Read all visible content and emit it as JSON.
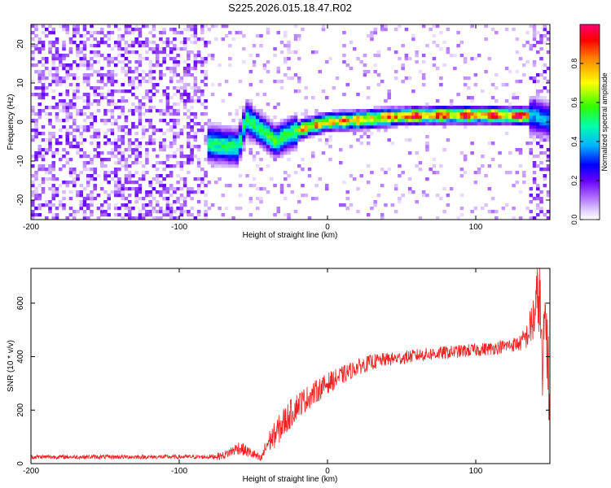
{
  "title": "S225.2026.015.18.47.R02",
  "chart_data": [
    {
      "type": "heatmap",
      "name": "spectrogram",
      "xlabel": "Height of straight line (km)",
      "ylabel": "Frequency (Hz)",
      "xlim": [
        -200,
        150
      ],
      "ylim": [
        -25,
        25
      ],
      "xticks": [
        -200,
        -100,
        0,
        100
      ],
      "yticks": [
        -20,
        -10,
        0,
        10,
        20
      ],
      "colorbar": {
        "label": "Normalized spectral amplitude",
        "range": [
          0,
          1
        ],
        "ticks": [
          0.0,
          0.2,
          0.4,
          0.6,
          0.8
        ],
        "tick_labels": [
          "0.0",
          "0.2",
          "0.4",
          "0.6",
          "0.8"
        ],
        "colors": [
          "#ffffff",
          "#cc99ff",
          "#7700ff",
          "#0000ff",
          "#00c8ff",
          "#00ff99",
          "#33ff00",
          "#ffff00",
          "#ff8800",
          "#ff0000",
          "#ff0066"
        ]
      },
      "features": {
        "noise_region_x": [
          -200,
          -80
        ],
        "ridge": [
          {
            "x": -82,
            "y": -5.5
          },
          {
            "x": -70,
            "y": -6
          },
          {
            "x": -60,
            "y": -6.5
          },
          {
            "x": -55,
            "y": 1
          },
          {
            "x": -45,
            "y": -2
          },
          {
            "x": -35,
            "y": -5
          },
          {
            "x": -25,
            "y": -3
          },
          {
            "x": -15,
            "y": -1.5
          },
          {
            "x": 0,
            "y": 0
          },
          {
            "x": 20,
            "y": 0.5
          },
          {
            "x": 50,
            "y": 1.5
          },
          {
            "x": 80,
            "y": 1.8
          },
          {
            "x": 110,
            "y": 1.8
          },
          {
            "x": 140,
            "y": 1.5
          },
          {
            "x": 150,
            "y": 0.5
          }
        ]
      }
    },
    {
      "type": "line",
      "name": "snr",
      "xlabel": "Height of straight line (km)",
      "ylabel": "SNR (10 * v/v)",
      "xlim": [
        -200,
        150
      ],
      "ylim": [
        0,
        730
      ],
      "xticks": [
        -200,
        -100,
        0,
        100
      ],
      "yticks": [
        0,
        200,
        400,
        600
      ],
      "color": "#ee2222",
      "series": [
        {
          "name": "SNR",
          "x": [
            -200,
            -150,
            -100,
            -80,
            -70,
            -60,
            -50,
            -45,
            -40,
            -35,
            -30,
            -20,
            -10,
            0,
            10,
            20,
            30,
            40,
            50,
            60,
            70,
            80,
            90,
            100,
            110,
            120,
            130,
            135,
            140,
            143,
            145,
            147,
            150
          ],
          "y": [
            25,
            25,
            25,
            25,
            30,
            60,
            35,
            15,
            80,
            110,
            150,
            220,
            260,
            300,
            330,
            360,
            380,
            390,
            395,
            405,
            410,
            415,
            420,
            425,
            430,
            440,
            450,
            480,
            560,
            650,
            300,
            600,
            200
          ],
          "noise_amplitude": [
            8,
            8,
            8,
            8,
            15,
            25,
            20,
            15,
            40,
            50,
            60,
            50,
            45,
            40,
            35,
            30,
            30,
            25,
            25,
            25,
            25,
            25,
            25,
            25,
            25,
            25,
            30,
            50,
            120,
            150,
            150,
            150,
            150
          ]
        }
      ]
    }
  ]
}
